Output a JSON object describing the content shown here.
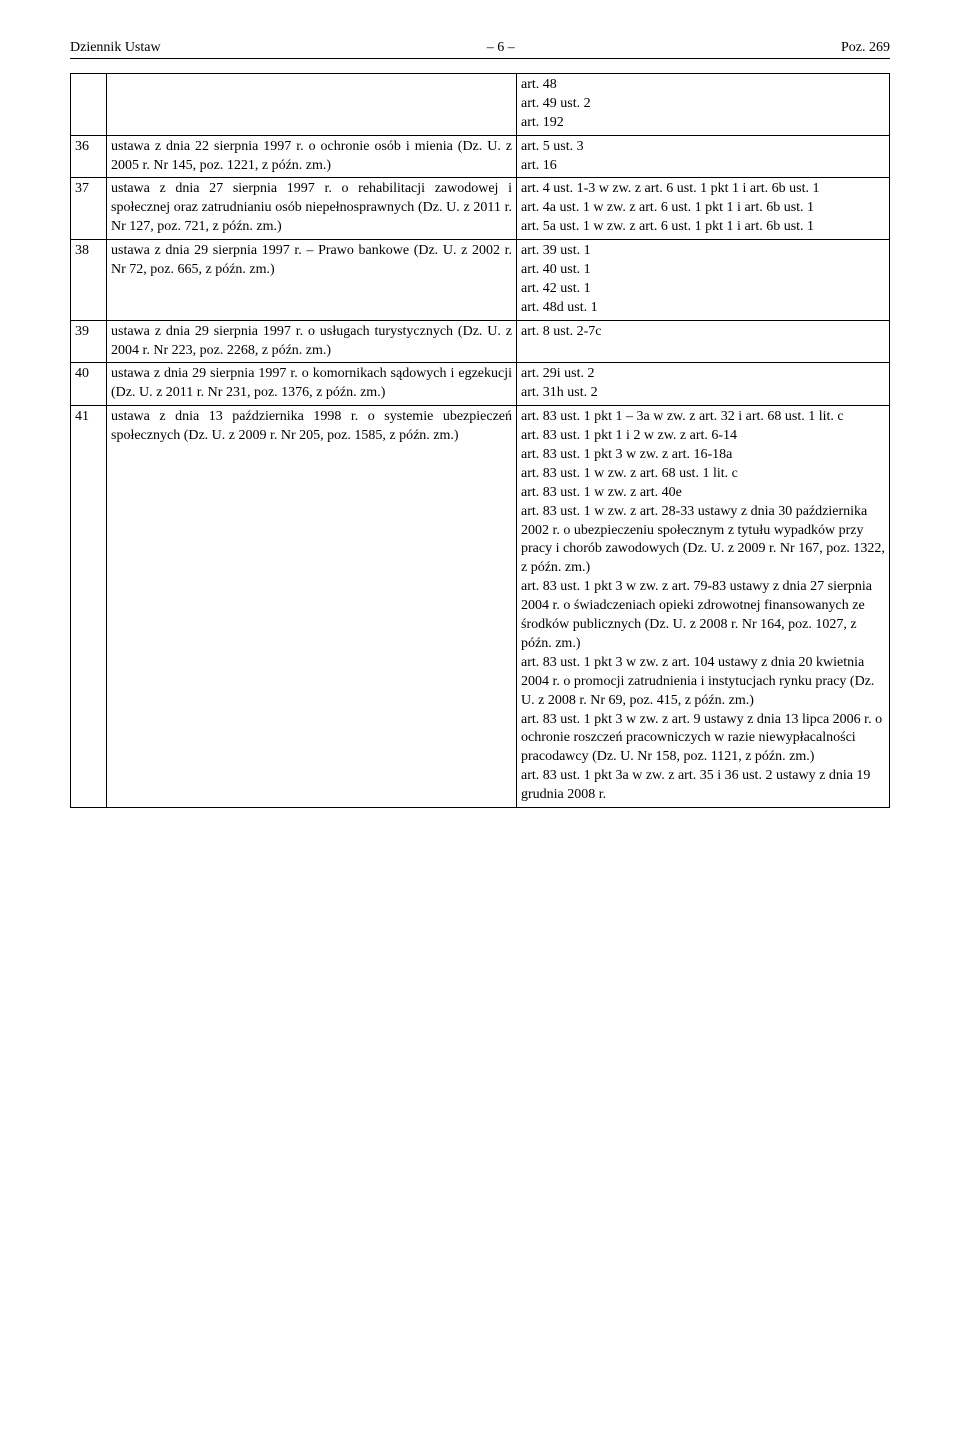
{
  "header": {
    "left": "Dziennik Ustaw",
    "center": "– 6 –",
    "right": "Poz. 269"
  },
  "rows": [
    {
      "n": "",
      "law": "",
      "ref": "art. 48\nart. 49 ust. 2\nart. 192"
    },
    {
      "n": "36",
      "law": "ustawa z dnia 22 sierpnia 1997 r. o ochronie osób i mienia (Dz. U. z 2005 r. Nr 145, poz. 1221, z późn. zm.)",
      "ref": "art. 5 ust. 3\nart. 16"
    },
    {
      "n": "37",
      "law": "ustawa z dnia 27 sierpnia 1997 r. o rehabilitacji zawodowej i społecznej oraz zatrudnianiu osób niepełnosprawnych (Dz. U. z 2011 r. Nr 127, poz. 721, z późn. zm.)",
      "ref": "art. 4 ust. 1-3 w zw. z art. 6 ust. 1 pkt 1 i art. 6b ust. 1\nart. 4a ust. 1 w zw. z art. 6 ust. 1 pkt 1 i art. 6b ust. 1\nart. 5a ust. 1 w zw. z art. 6 ust. 1 pkt 1 i art. 6b ust. 1"
    },
    {
      "n": "38",
      "law": "ustawa  z dnia 29 sierpnia 1997 r. – Prawo bankowe (Dz. U. z 2002 r. Nr 72, poz. 665, z późn. zm.)",
      "ref": "art. 39 ust. 1\nart. 40 ust. 1\nart. 42 ust. 1\nart. 48d ust. 1"
    },
    {
      "n": "39",
      "law": "ustawa z dnia 29 sierpnia 1997 r. o usługach turystycznych (Dz. U. z 2004 r. Nr 223, poz. 2268, z późn. zm.)",
      "ref": "art. 8 ust. 2-7c"
    },
    {
      "n": "40",
      "law": "ustawa z dnia 29 sierpnia 1997 r. o komornikach sądowych i egzekucji (Dz. U. z 2011 r. Nr 231, poz. 1376, z późn. zm.)",
      "ref": "art. 29i ust. 2\nart. 31h ust. 2"
    },
    {
      "n": "41",
      "law": "ustawa z dnia 13 października 1998 r. o systemie ubezpieczeń społecznych (Dz. U. z 2009 r. Nr 205, poz. 1585, z późn. zm.)",
      "ref": "art. 83 ust. 1 pkt 1 – 3a w zw. z art. 32 i art. 68 ust. 1 lit. c\nart. 83 ust. 1 pkt 1 i 2 w zw. z art. 6-14\nart. 83 ust. 1 pkt 3 w zw. z art. 16-18a\nart. 83 ust. 1 w zw. z art. 68 ust. 1 lit. c\nart. 83 ust. 1 w zw. z art. 40e\nart. 83 ust. 1 w zw. z art. 28-33 ustawy z dnia 30 października 2002 r. o ubezpieczeniu społecznym z tytułu wypadków przy pracy i chorób zawodowych (Dz. U. z 2009 r. Nr 167, poz. 1322, z późn. zm.)\nart. 83 ust. 1 pkt 3 w zw. z art. 79-83 ustawy z dnia 27 sierpnia 2004 r. o świadczeniach opieki zdrowotnej finansowanych ze środków publicznych (Dz. U. z 2008 r. Nr 164, poz. 1027, z późn. zm.)\nart. 83 ust. 1 pkt 3 w zw. z art. 104 ustawy z dnia 20 kwietnia 2004 r. o promocji zatrudnienia i instytucjach rynku pracy (Dz. U. z 2008 r. Nr 69, poz. 415, z późn. zm.)\nart. 83 ust. 1 pkt 3 w zw. z art. 9 ustawy z dnia 13 lipca 2006 r. o ochronie roszczeń pracowniczych w razie niewypłacalności pracodawcy (Dz. U. Nr 158, poz. 1121, z późn. zm.)\nart. 83 ust. 1 pkt 3a w zw. z art. 35 i 36 ust. 2 ustawy z dnia 19 grudnia 2008 r."
    }
  ]
}
